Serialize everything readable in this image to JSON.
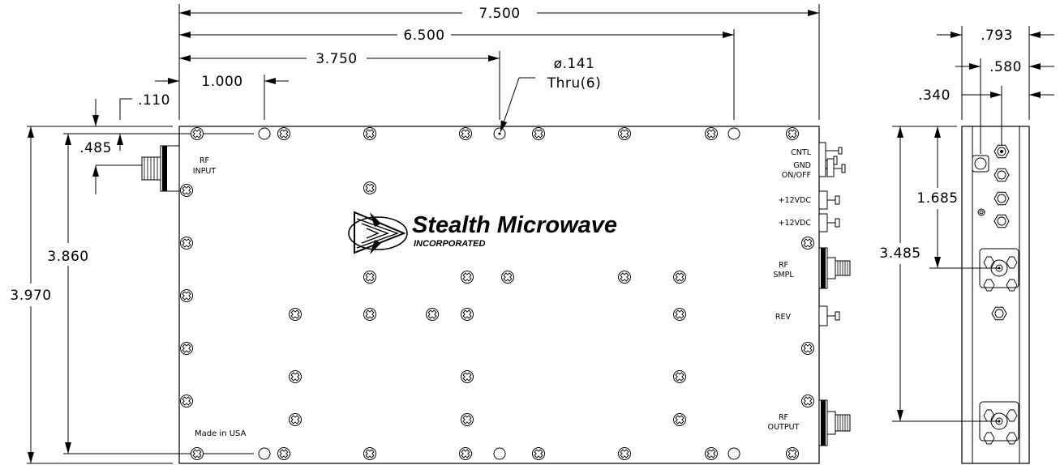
{
  "dimensions": {
    "overall_width": "7.500",
    "hole_x2": "6.500",
    "hole_x1": "3.750",
    "hole_x0": "1.000",
    "edge_inset": ".110",
    "rf_input_y": ".485",
    "hole_spacing_y": "3.860",
    "overall_height": "3.970",
    "side_width": ".793",
    "side_conn_x": ".580",
    "side_edge_x": ".340",
    "rf_smpl_y": "1.685",
    "rf_output_y": "3.485"
  },
  "hole_note": {
    "size": "ø.141",
    "qty": "Thru(6)"
  },
  "connectors": {
    "rf_input": [
      "RF",
      "INPUT"
    ],
    "cntl": "CNTL",
    "gnd": "GND",
    "on_off": "ON/OFF",
    "vdc_1": "+12VDC",
    "vdc_2": "+12VDC",
    "rf_smpl": [
      "RF",
      "SMPL"
    ],
    "rev": "REV",
    "rf_output": [
      "RF",
      "OUTPUT"
    ]
  },
  "logo": {
    "name": "Stealth Microwave",
    "subtitle": "INCORPORATED"
  },
  "made_in": "Made in USA"
}
